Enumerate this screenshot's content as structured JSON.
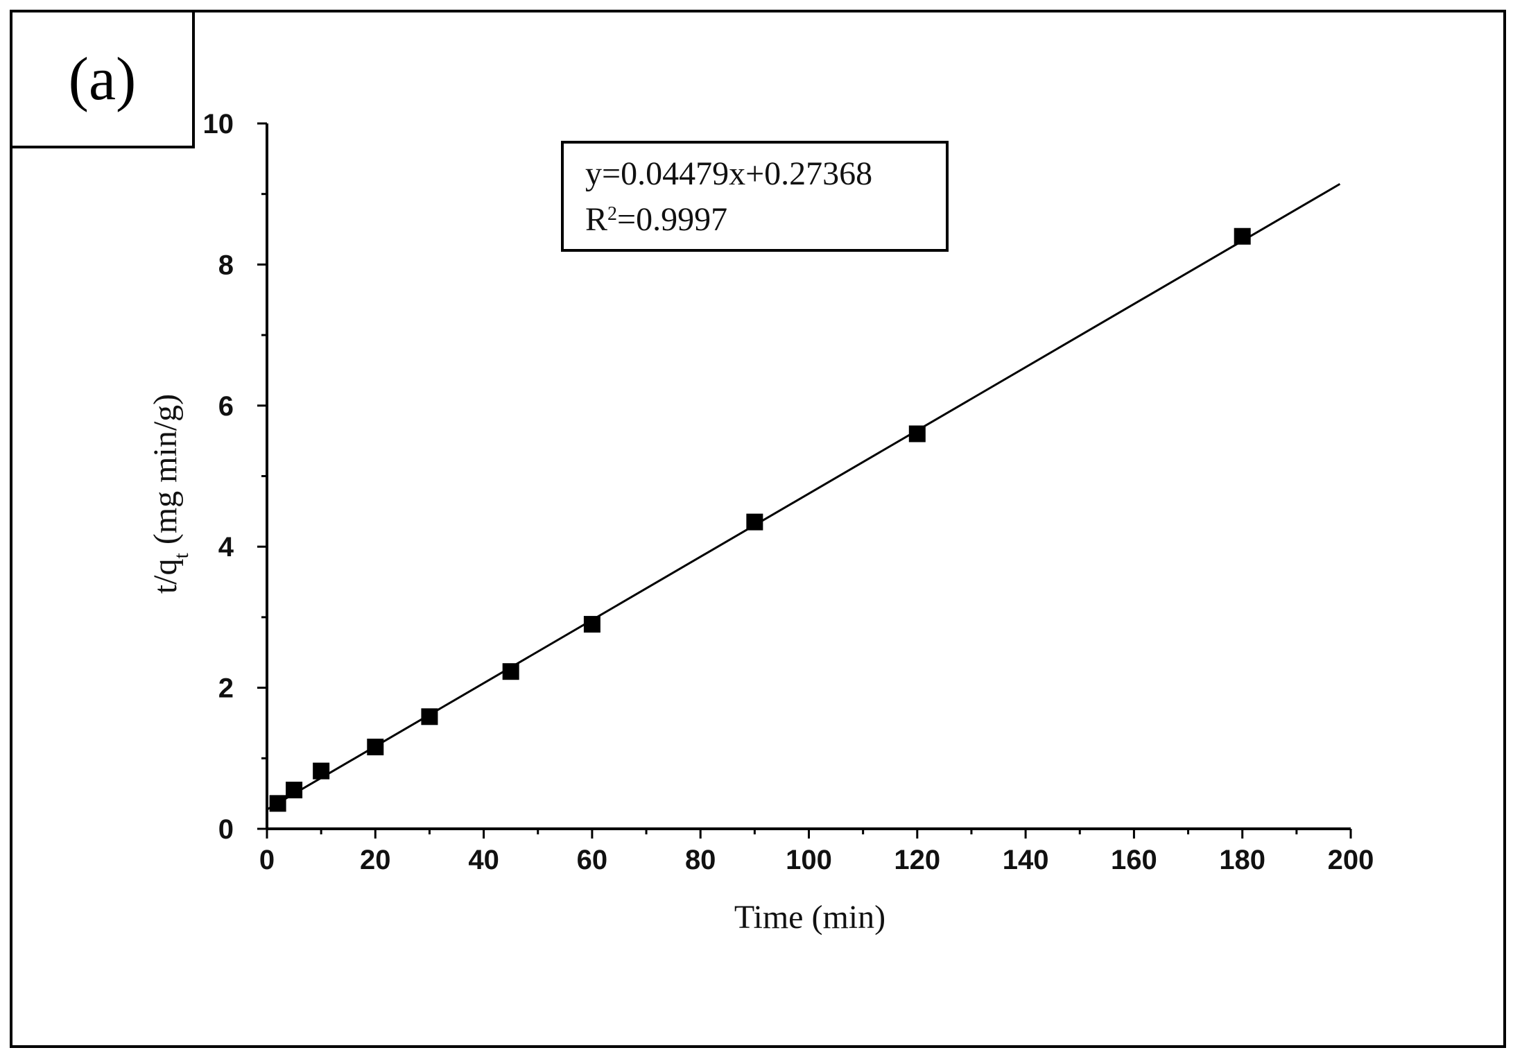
{
  "panel_label": "(a)",
  "chart_data": {
    "type": "scatter",
    "title": "",
    "xlabel": "Time (min)",
    "ylabel": {
      "main": "t/q",
      "sub": "t",
      "rest": " (mg min/g)"
    },
    "xlim": [
      0,
      200
    ],
    "ylim": [
      0,
      10
    ],
    "xticks": [
      0,
      20,
      40,
      60,
      80,
      100,
      120,
      140,
      160,
      180,
      200
    ],
    "yticks": [
      0,
      2,
      4,
      6,
      8,
      10
    ],
    "grid": false,
    "series": [
      {
        "x": [
          2,
          5,
          10,
          20,
          30,
          45,
          60,
          90,
          120,
          180
        ],
        "y": [
          0.36,
          0.55,
          0.82,
          1.16,
          1.59,
          2.23,
          2.9,
          4.35,
          5.6,
          8.4
        ],
        "marker": "square",
        "color": "#000000"
      }
    ],
    "fit_line": {
      "slope": 0.04479,
      "intercept": 0.27368,
      "x_range": [
        0,
        198
      ],
      "color": "#000000"
    },
    "annotation": {
      "equation": "y=0.04479x+0.27368",
      "r2_prefix": "R",
      "r2_sup": "2",
      "r2_value": "=0.9997"
    }
  }
}
